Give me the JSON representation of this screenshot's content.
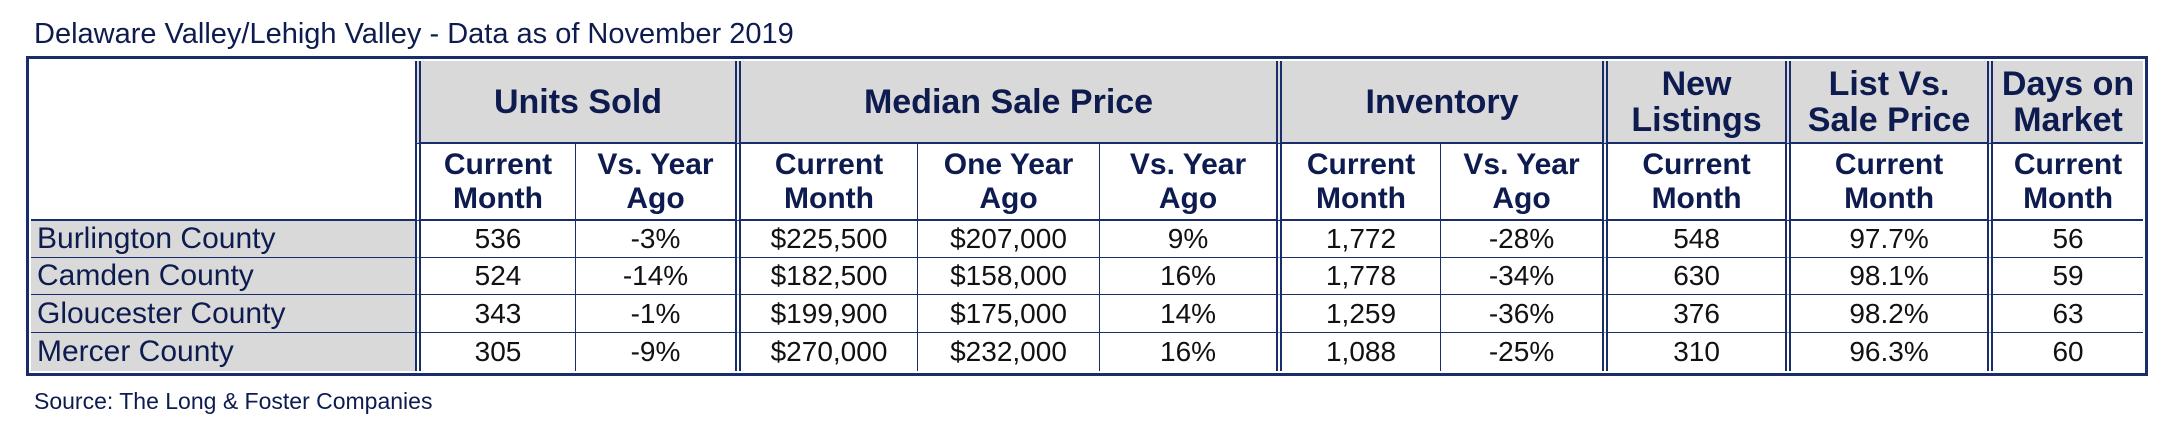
{
  "title": "Delaware Valley/Lehigh Valley - Data as of November 2019",
  "source": "Source: The Long & Foster Companies",
  "colors": {
    "navy": "#1a2d6b",
    "header_fill": "#d9d9d9"
  },
  "headers": {
    "units_sold": "Units Sold",
    "median_sale_price": "Median Sale Price",
    "inventory": "Inventory",
    "new_listings": "New Listings",
    "list_vs_sale": "List Vs. Sale Price",
    "days_on_market": "Days on Market"
  },
  "subheaders": {
    "units_current": "Current Month",
    "units_vs_year": "Vs. Year Ago",
    "price_current": "Current Month",
    "price_one_year": "One Year Ago",
    "price_vs_year": "Vs. Year Ago",
    "inv_current": "Current Month",
    "inv_vs_year": "Vs. Year Ago",
    "new_current": "Current Month",
    "list_current": "Current Month",
    "dom_current": "Current Month"
  },
  "rows": [
    {
      "county": "Burlington County",
      "units_current": "536",
      "units_vs_year": "-3%",
      "price_current": "$225,500",
      "price_one_year": "$207,000",
      "price_vs_year": "9%",
      "inv_current": "1,772",
      "inv_vs_year": "-28%",
      "new_listings": "548",
      "list_vs_sale": "97.7%",
      "dom": "56"
    },
    {
      "county": "Camden County",
      "units_current": "524",
      "units_vs_year": "-14%",
      "price_current": "$182,500",
      "price_one_year": "$158,000",
      "price_vs_year": "16%",
      "inv_current": "1,778",
      "inv_vs_year": "-34%",
      "new_listings": "630",
      "list_vs_sale": "98.1%",
      "dom": "59"
    },
    {
      "county": "Gloucester County",
      "units_current": "343",
      "units_vs_year": "-1%",
      "price_current": "$199,900",
      "price_one_year": "$175,000",
      "price_vs_year": "14%",
      "inv_current": "1,259",
      "inv_vs_year": "-36%",
      "new_listings": "376",
      "list_vs_sale": "98.2%",
      "dom": "63"
    },
    {
      "county": "Mercer County",
      "units_current": "305",
      "units_vs_year": "-9%",
      "price_current": "$270,000",
      "price_one_year": "$232,000",
      "price_vs_year": "16%",
      "inv_current": "1,088",
      "inv_vs_year": "-25%",
      "new_listings": "310",
      "list_vs_sale": "96.3%",
      "dom": "60"
    }
  ]
}
